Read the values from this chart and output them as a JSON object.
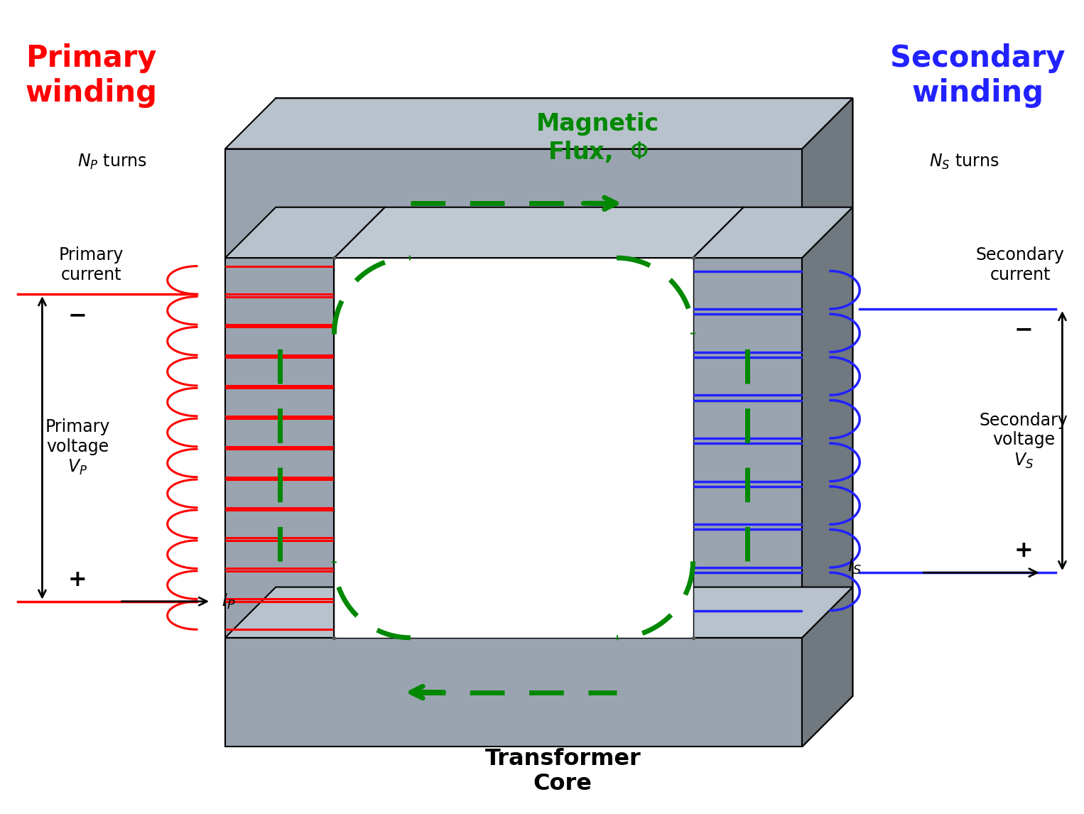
{
  "bg_color": "#ffffff",
  "primary_color": "#ff0000",
  "secondary_color": "#2222ff",
  "core_face_color": "#9aa4b0",
  "core_top_color": "#b8c2cc",
  "core_side_color": "#707880",
  "core_inner_face": "#8892a0",
  "core_inner_top": "#a0aab5",
  "hole_color": "#ffffff",
  "flux_color": "#008800",
  "text_color": "#000000",
  "title_primary": "Primary\nwinding",
  "title_secondary": "Secondary\nwinding",
  "label_np": "$N_P$ turns",
  "label_ns": "$N_S$ turns",
  "label_primary_current": "Primary\ncurrent",
  "label_ip": "$I_P$",
  "label_primary_voltage": "Primary\nvoltage\n$V_P$",
  "label_secondary_current": "Secondary\ncurrent",
  "label_is": "$I_S$",
  "label_secondary_voltage": "Secondary\nvoltage\n$V_S$",
  "label_flux": "Magnetic\nFlux,  $\\Phi$",
  "label_core": "Transformer\nCore",
  "plus": "+",
  "minus": "−",
  "n_turns_primary": 12,
  "n_turns_secondary": 8
}
